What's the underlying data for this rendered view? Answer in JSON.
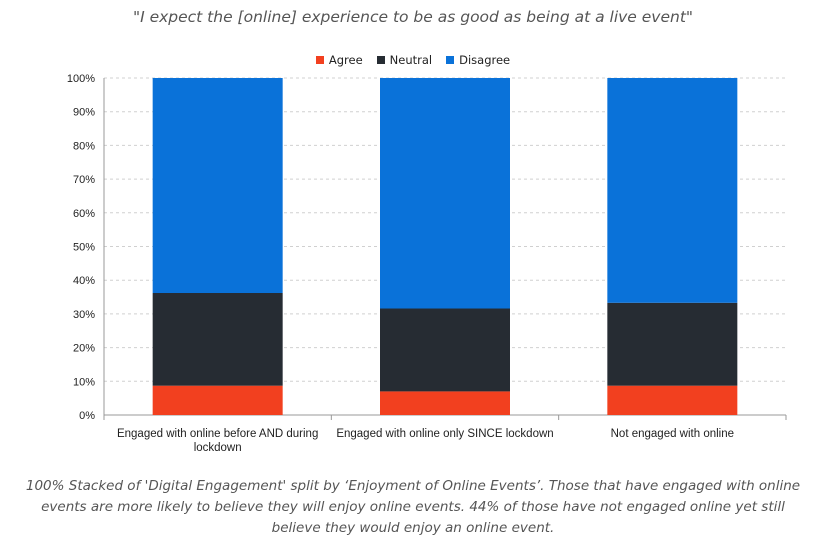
{
  "title": "\"I expect the [online] experience to be as good as being at a live event\"",
  "caption": "100% Stacked of 'Digital Engagement' split by ‘Enjoyment of Online Events’. Those that have engaged with online events are more likely to believe they will enjoy  online events. 44% of those have not engaged online yet still believe they would enjoy an online event.",
  "colors": {
    "agree": "#f2401f",
    "neutral": "#262c33",
    "disagree": "#0a72d9",
    "grid": "#d0d0d0",
    "axis": "#999999"
  },
  "chart_data": {
    "type": "bar",
    "stacked": true,
    "categories": [
      [
        "Engaged with online before AND during",
        "lockdown"
      ],
      [
        "Engaged with online only SINCE lockdown"
      ],
      [
        "Not engaged with online"
      ]
    ],
    "series": [
      {
        "name": "Agree",
        "color": "#f2401f",
        "values": [
          8.7,
          7,
          8.7
        ]
      },
      {
        "name": "Neutral",
        "color": "#262c33",
        "values": [
          27.5,
          24.6,
          24.6
        ]
      },
      {
        "name": "Disagree",
        "color": "#0a72d9",
        "values": [
          63.8,
          68.4,
          66.7
        ]
      }
    ],
    "yticks": [
      "0%",
      "10%",
      "20%",
      "30%",
      "40%",
      "50%",
      "60%",
      "70%",
      "80%",
      "90%",
      "100%"
    ],
    "ylim": [
      0,
      100
    ],
    "legend_position": "top",
    "grid": true
  }
}
